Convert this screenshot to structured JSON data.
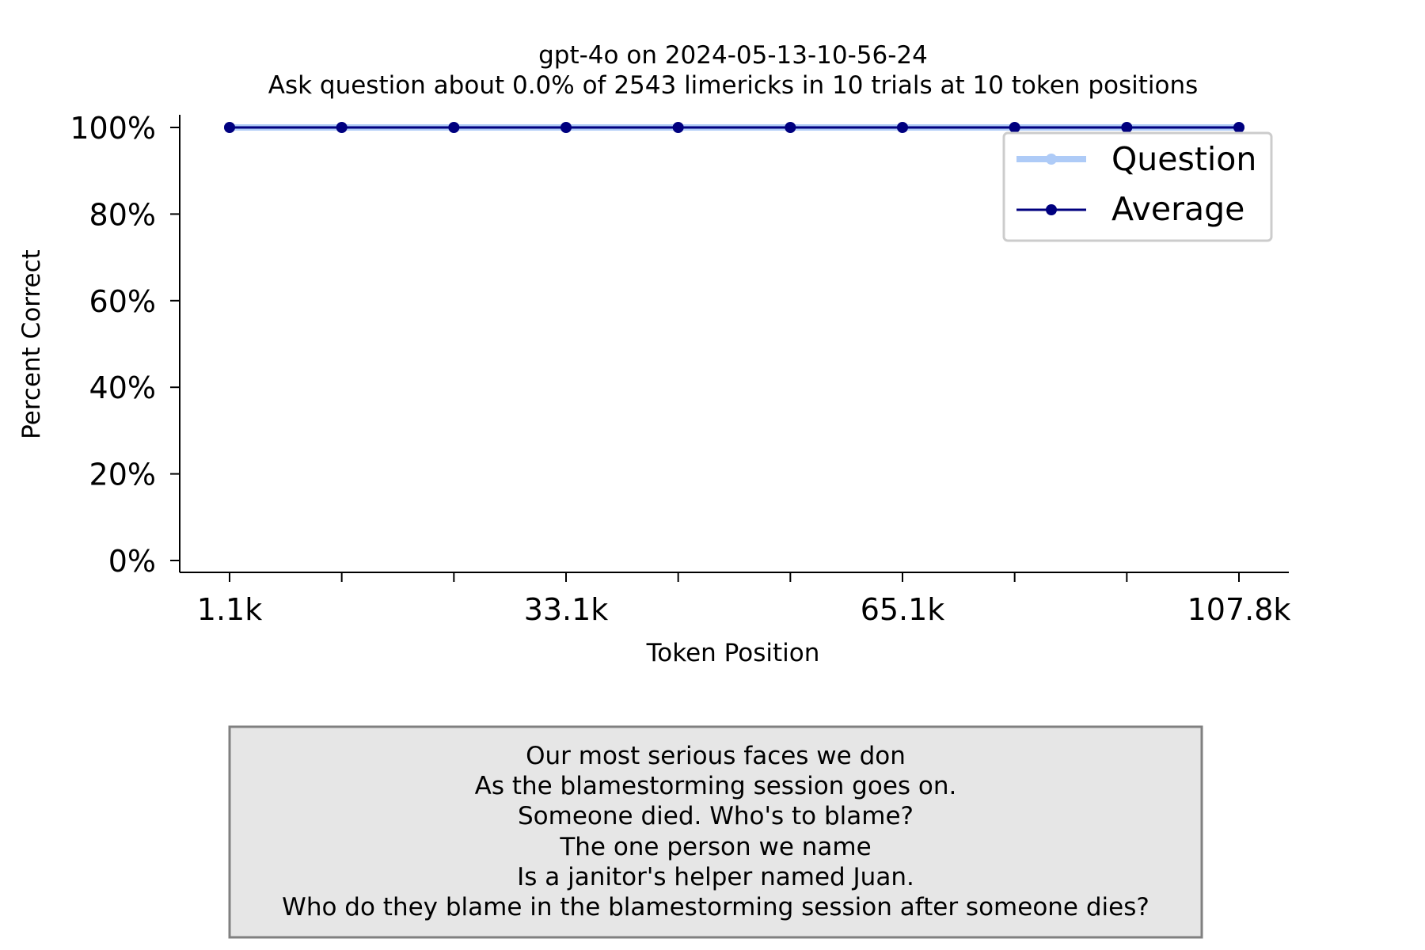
{
  "chart_data": {
    "type": "line",
    "title": "gpt-4o on 2024-05-13-10-56-24",
    "subtitle": "Ask question about 0.0% of 2543 limericks in 10 trials at 10 token positions",
    "xlabel": "Token Position",
    "ylabel": "Percent Correct",
    "x": [
      1.1,
      12.9,
      24.6,
      33.1,
      45.9,
      57.6,
      65.1,
      77.2,
      89.3,
      107.8
    ],
    "x_unit": "k tokens",
    "x_tick_labels": [
      "1.1k",
      "33.1k",
      "65.1k",
      "107.8k"
    ],
    "y_ticks": [
      "0%",
      "20%",
      "40%",
      "60%",
      "80%",
      "100%"
    ],
    "ylim": [
      0,
      100
    ],
    "grid": false,
    "legend_position": "top-right",
    "series": [
      {
        "name": "Question",
        "color": "#aecbf7",
        "values": [
          100,
          100,
          100,
          100,
          100,
          100,
          100,
          100,
          100,
          100
        ]
      },
      {
        "name": "Average",
        "color": "#00007f",
        "values": [
          100,
          100,
          100,
          100,
          100,
          100,
          100,
          100,
          100,
          100
        ]
      }
    ]
  },
  "limerick_box": {
    "lines": [
      "Our most serious faces we don",
      "As the blamestorming session goes on.",
      "Someone died. Who's to blame?",
      "The one person we name",
      "Is a janitor's helper named Juan.",
      "Who do they blame in the blamestorming session after someone dies?"
    ],
    "background": "#e6e6e6",
    "border": "#808080"
  }
}
